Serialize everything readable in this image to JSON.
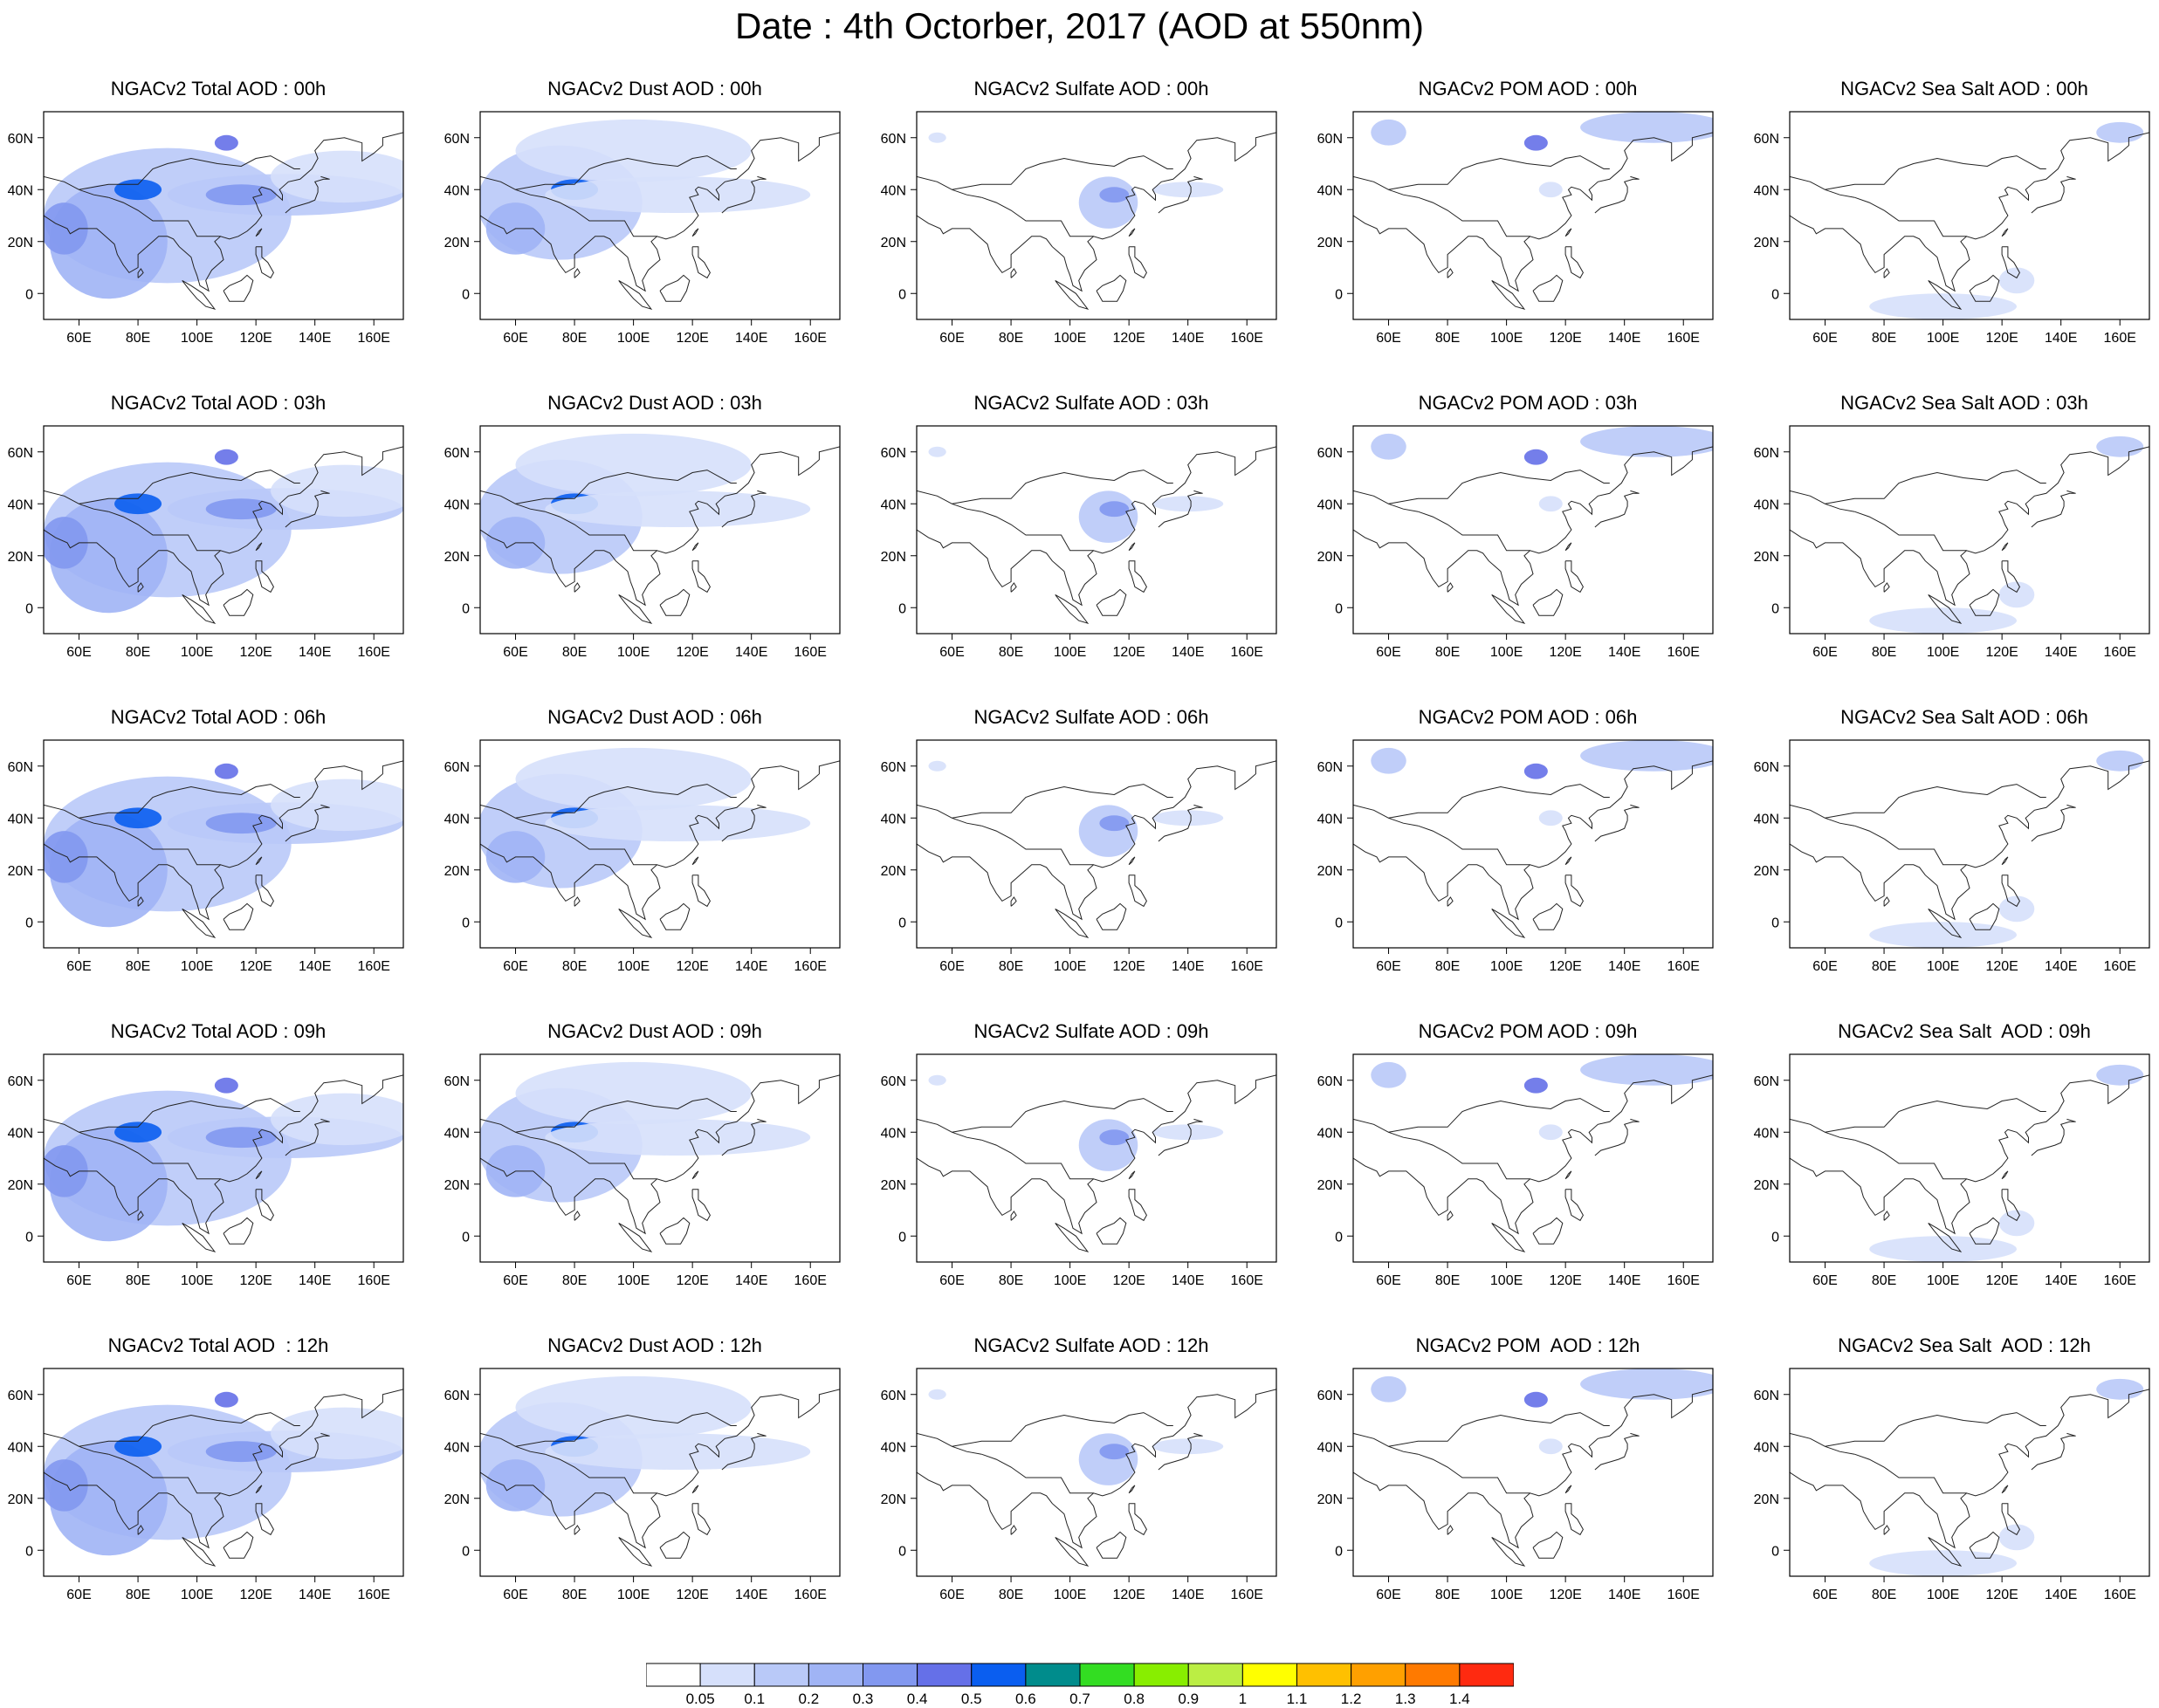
{
  "title": "Date : 4th Octorber, 2017 (AOD at 550nm)",
  "axes": {
    "x_ticks": [
      "60E",
      "80E",
      "100E",
      "120E",
      "140E",
      "160E"
    ],
    "y_ticks": [
      "60N",
      "40N",
      "20N",
      "0"
    ],
    "lon_range": [
      48,
      170
    ],
    "lat_range": [
      -10,
      70
    ]
  },
  "species": [
    "Total",
    "Dust",
    "Sulfate",
    "POM",
    "Sea Salt"
  ],
  "times": [
    "00h",
    "03h",
    "06h",
    "09h",
    "12h"
  ],
  "panels": [
    [
      "NGACv2 Total AOD : 00h",
      "NGACv2 Dust AOD : 00h",
      "NGACv2 Sulfate AOD : 00h",
      "NGACv2 POM AOD : 00h",
      "NGACv2 Sea Salt AOD : 00h"
    ],
    [
      "NGACv2 Total AOD : 03h",
      "NGACv2 Dust AOD : 03h",
      "NGACv2 Sulfate AOD : 03h",
      "NGACv2 POM AOD : 03h",
      "NGACv2 Sea Salt AOD : 03h"
    ],
    [
      "NGACv2 Total AOD : 06h",
      "NGACv2 Dust AOD : 06h",
      "NGACv2 Sulfate AOD : 06h",
      "NGACv2 POM AOD : 06h",
      "NGACv2 Sea Salt AOD : 06h"
    ],
    [
      "NGACv2 Total AOD : 09h",
      "NGACv2 Dust AOD : 09h",
      "NGACv2 Sulfate AOD : 09h",
      "NGACv2 POM AOD : 09h",
      "NGACv2 Sea Salt  AOD : 09h"
    ],
    [
      "NGACv2 Total AOD  : 12h",
      "NGACv2 Dust AOD : 12h",
      "NGACv2 Sulfate AOD : 12h",
      "NGACv2 POM  AOD : 12h",
      "NGACv2 Sea Salt  AOD : 12h"
    ]
  ],
  "colorbar": {
    "labels": [
      "0.05",
      "0.1",
      "0.2",
      "0.3",
      "0.4",
      "0.5",
      "0.6",
      "0.7",
      "0.8",
      "0.9",
      "1",
      "1.1",
      "1.2",
      "1.3",
      "1.4"
    ],
    "colors": [
      "#ffffff",
      "#d6e0fb",
      "#b9c9f8",
      "#a0b4f5",
      "#8298f0",
      "#6570e8",
      "#0a5ef0",
      "#008c8c",
      "#33dd22",
      "#88ee00",
      "#bbee44",
      "#ffff00",
      "#ffc000",
      "#ffa000",
      "#ff7a00",
      "#ff2a10"
    ]
  }
}
